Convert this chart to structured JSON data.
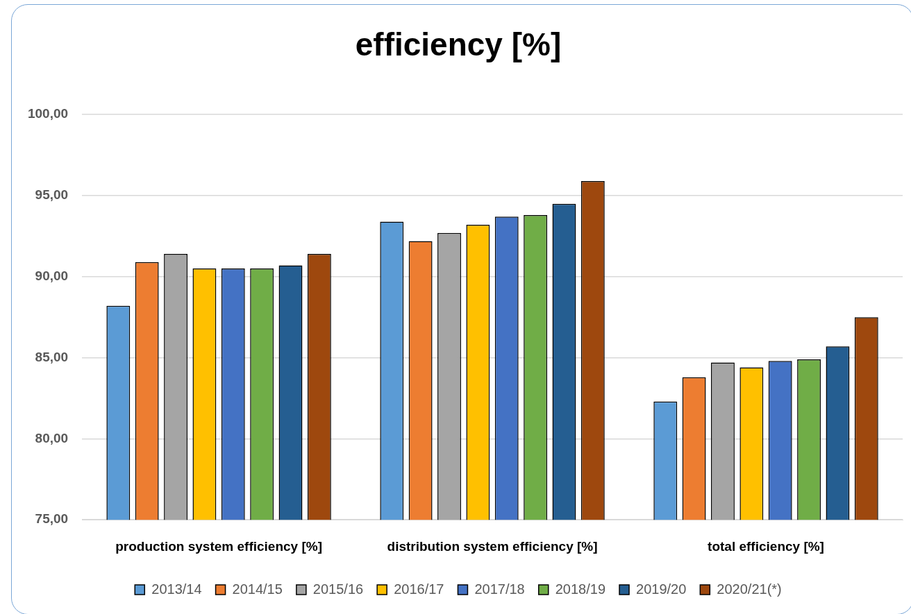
{
  "chart_data": {
    "type": "bar",
    "title": "efficiency [%]",
    "categories": [
      "production system efficiency [%]",
      "distribution system efficiency [%]",
      "total efficiency [%]"
    ],
    "series": [
      {
        "name": "2013/14",
        "color": "#5b9bd5",
        "values": [
          88.2,
          93.4,
          82.3
        ]
      },
      {
        "name": "2014/15",
        "color": "#ed7d31",
        "values": [
          90.9,
          92.2,
          83.8
        ]
      },
      {
        "name": "2015/16",
        "color": "#a5a5a5",
        "values": [
          91.4,
          92.7,
          84.7
        ]
      },
      {
        "name": "2016/17",
        "color": "#ffc000",
        "values": [
          90.5,
          93.2,
          84.4
        ]
      },
      {
        "name": "2017/18",
        "color": "#4472c4",
        "values": [
          90.5,
          93.7,
          84.8
        ]
      },
      {
        "name": "2018/19",
        "color": "#70ad47",
        "values": [
          90.5,
          93.8,
          84.9
        ]
      },
      {
        "name": "2019/20",
        "color": "#255e91",
        "values": [
          90.7,
          94.5,
          85.7
        ]
      },
      {
        "name": "2020/21(*)",
        "color": "#9e480e",
        "values": [
          91.4,
          95.9,
          87.5
        ]
      }
    ],
    "ylim": [
      75,
      100
    ],
    "yticks": [
      {
        "value": 75,
        "label": "75,00"
      },
      {
        "value": 80,
        "label": "80,00"
      },
      {
        "value": 85,
        "label": "85,00"
      },
      {
        "value": 90,
        "label": "90,00"
      },
      {
        "value": 95,
        "label": "95,00"
      },
      {
        "value": 100,
        "label": "100,00"
      }
    ],
    "grid": "y",
    "legend": "bottom"
  }
}
